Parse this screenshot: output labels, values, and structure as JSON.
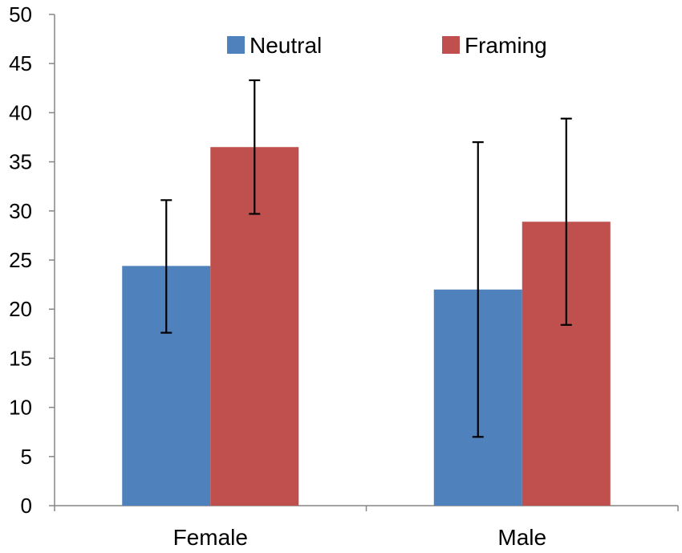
{
  "chart_data": {
    "type": "bar",
    "title": "",
    "xlabel": "",
    "ylabel": "",
    "categories": [
      "Female",
      "Male"
    ],
    "series": [
      {
        "name": "Neutral",
        "color": "#4F81BD",
        "values": [
          24.4,
          22.0
        ],
        "err_low": [
          17.6,
          7.0
        ],
        "err_high": [
          31.1,
          37.0
        ]
      },
      {
        "name": "Framing",
        "color": "#C0504D",
        "values": [
          36.5,
          28.9
        ],
        "err_low": [
          29.7,
          18.4
        ],
        "err_high": [
          43.3,
          39.4
        ]
      }
    ],
    "ylim": [
      0,
      50
    ],
    "yticks": [
      0,
      5,
      10,
      15,
      20,
      25,
      30,
      35,
      40,
      45,
      50
    ],
    "ytick_labels": [
      "0",
      "5",
      "10",
      "15",
      "20",
      "25",
      "30",
      "35",
      "40",
      "45",
      "50"
    ],
    "grid": false,
    "legend": "top-center"
  }
}
